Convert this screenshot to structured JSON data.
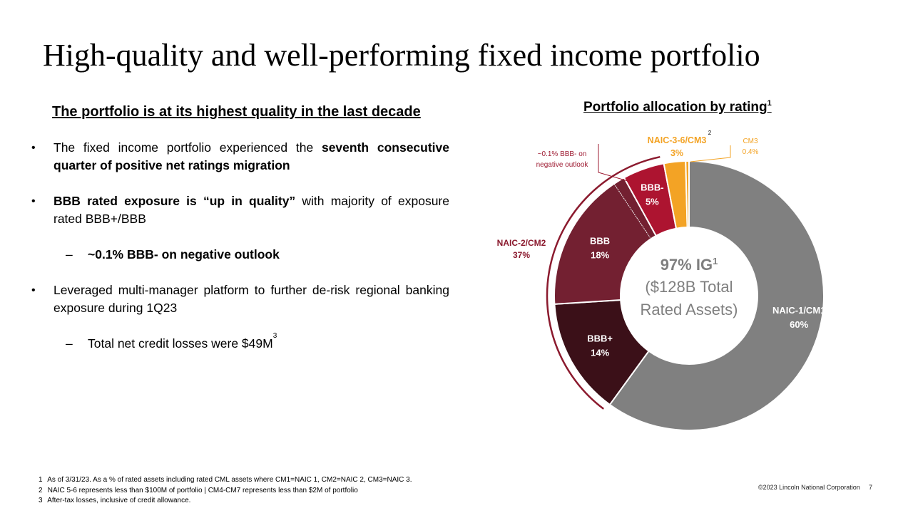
{
  "title": "High-quality and well-performing fixed income portfolio",
  "left": {
    "heading": "The portfolio is at its highest quality in the last decade",
    "bullets": [
      {
        "pre": "The fixed income portfolio experienced the ",
        "bold": "seventh consecutive quarter of positive net ratings migration",
        "post": ""
      },
      {
        "pre": "",
        "bold": "BBB rated exposure is “up in quality”",
        "post": " with majority of exposure rated BBB+/BBB"
      },
      {
        "pre": "",
        "bold": "~0.1% BBB- on negative outlook",
        "post": ""
      },
      {
        "pre": "Leveraged multi-manager platform to further de-risk regional banking exposure during 1Q23",
        "bold": "",
        "post": ""
      },
      {
        "pre": "Total net credit losses were $49M",
        "bold": "",
        "post": "",
        "footnote": "3"
      }
    ],
    "bullet_marker": "•",
    "sub_marker": "–"
  },
  "chart_title": "Portfolio allocation by rating",
  "chart_title_footnote": "1",
  "chart_data": {
    "type": "pie",
    "title": "Portfolio allocation by rating",
    "slices": [
      {
        "label": "NAIC-1/CM1",
        "value": 60,
        "display": "60%",
        "color": "#808080"
      },
      {
        "label": "BBB+",
        "value": 14,
        "display": "14%",
        "color": "#3b1018"
      },
      {
        "label": "BBB",
        "value": 18,
        "display": "18%",
        "color": "#732031"
      },
      {
        "label": "BBB-",
        "value": 5,
        "display": "5%",
        "color": "#ad1430"
      },
      {
        "label": "NAIC-3-6/CM3",
        "value": 2.6,
        "display": "3%",
        "color": "#f3a325"
      },
      {
        "label": "CM3",
        "value": 0.4,
        "display": "0.4%",
        "color": "#f3a325"
      }
    ],
    "center": {
      "line1": "97% IG",
      "line1_sup": "1",
      "line2": "($128B Total",
      "line3": "Rated Assets)"
    },
    "groups": [
      {
        "label": "NAIC-2/CM2",
        "value": "37%",
        "color": "#8b1a2e"
      }
    ],
    "annotations": [
      {
        "text1": "~0.1% BBB- on",
        "text2": "negative outlook",
        "color": "#9e1b32"
      }
    ],
    "naic3_footnote": "2"
  },
  "footnotes": [
    {
      "num": "1",
      "text": "As of 3/31/23. As a % of rated assets including rated CML assets where CM1=NAIC 1, CM2=NAIC 2, CM3=NAIC 3."
    },
    {
      "num": "2",
      "text": "NAIC 5-6 represents less than $100M of portfolio | CM4-CM7 represents less than $2M of portfolio"
    },
    {
      "num": "3",
      "text": "After-tax losses, inclusive of credit allowance."
    }
  ],
  "copyright": "©2023 Lincoln National Corporation",
  "page_number": "7",
  "colors": {
    "accent_red": "#8b1a2e",
    "gold": "#f3a325",
    "gray": "#808080"
  }
}
